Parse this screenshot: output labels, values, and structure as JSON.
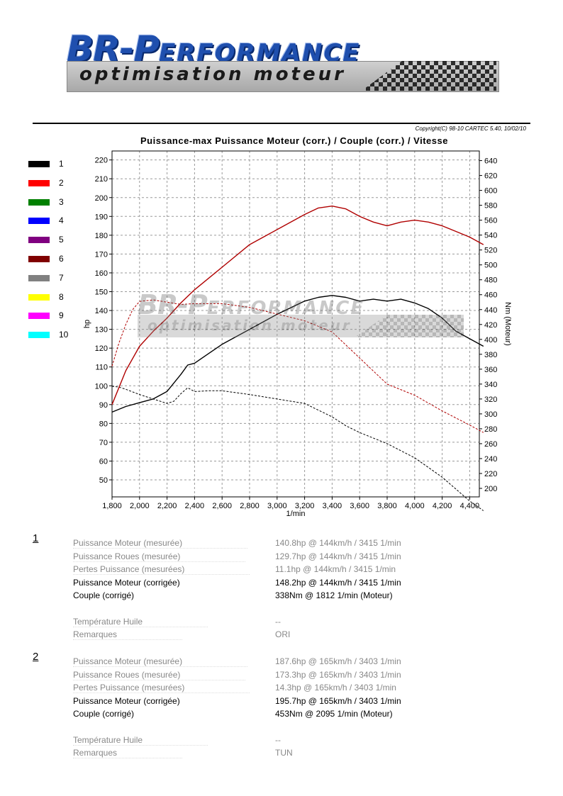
{
  "logo": {
    "brand_big": "BR-P",
    "brand_small": "ERFORMANCE",
    "tagline": "optimisation moteur"
  },
  "copyright": "Copyright(C) 98-10 CARTEC 5.40, 10/02/10",
  "legend": [
    {
      "label": "1",
      "color": "#000000"
    },
    {
      "label": "2",
      "color": "#ff0000"
    },
    {
      "label": "3",
      "color": "#008000"
    },
    {
      "label": "4",
      "color": "#0000ff"
    },
    {
      "label": "5",
      "color": "#800080"
    },
    {
      "label": "6",
      "color": "#800000"
    },
    {
      "label": "7",
      "color": "#808080"
    },
    {
      "label": "8",
      "color": "#ffff00"
    },
    {
      "label": "9",
      "color": "#ff00ff"
    },
    {
      "label": "10",
      "color": "#00ffff"
    }
  ],
  "chart_data": {
    "type": "line",
    "title": "Puissance-max Puissance Moteur (corr.) / Couple (corr.) / Vitesse",
    "xlabel": "1/min",
    "ylabel": "hp",
    "y2label": "Nm (Moteur)",
    "xlim": [
      1800,
      4500
    ],
    "ylim": [
      40,
      225
    ],
    "y2lim": [
      190,
      645
    ],
    "x_ticks": [
      1800,
      2000,
      2200,
      2400,
      2600,
      2800,
      3000,
      3200,
      3400,
      3600,
      3800,
      4000,
      4200,
      4400
    ],
    "x_tick_labels": [
      "1,800",
      "2,000",
      "2,200",
      "2,400",
      "2,600",
      "2,800",
      "3,000",
      "3,200",
      "3,400",
      "3,600",
      "3,800",
      "4,000",
      "4,200",
      "4,400"
    ],
    "y_ticks": [
      50,
      60,
      70,
      80,
      90,
      100,
      110,
      120,
      130,
      140,
      150,
      160,
      170,
      180,
      190,
      200,
      210,
      220
    ],
    "y2_ticks": [
      200,
      220,
      240,
      260,
      280,
      300,
      320,
      340,
      360,
      380,
      400,
      420,
      440,
      460,
      480,
      500,
      520,
      540,
      560,
      580,
      600,
      620,
      640
    ],
    "grid": true,
    "series": [
      {
        "run": "1",
        "quantity": "power",
        "axis": "left",
        "color": "#000000",
        "dash": false,
        "x": [
          1800,
          1900,
          2000,
          2100,
          2200,
          2300,
          2350,
          2400,
          2500,
          2600,
          2800,
          3000,
          3200,
          3300,
          3400,
          3500,
          3600,
          3700,
          3800,
          3900,
          4000,
          4100,
          4200,
          4300,
          4400,
          4500
        ],
        "y": [
          86,
          89,
          91,
          93,
          97,
          106,
          111,
          112,
          117,
          122,
          130,
          138,
          145,
          147,
          148,
          147,
          145,
          146,
          145,
          146,
          144,
          141,
          136,
          129,
          125,
          121
        ]
      },
      {
        "run": "1",
        "quantity": "torque",
        "axis": "right",
        "color": "#000000",
        "dash": true,
        "x": [
          1800,
          1850,
          1900,
          2000,
          2100,
          2200,
          2250,
          2300,
          2350,
          2400,
          2500,
          2600,
          2800,
          3000,
          3200,
          3300,
          3400,
          3500,
          3600,
          3800,
          4000,
          4200,
          4400,
          4500
        ],
        "y": [
          337,
          336,
          333,
          326,
          320,
          314,
          317,
          327,
          335,
          330,
          331,
          331,
          326,
          320,
          314,
          305,
          296,
          284,
          275,
          260,
          241,
          215,
          183,
          170
        ]
      },
      {
        "run": "2",
        "quantity": "power",
        "axis": "left",
        "color": "#b00000",
        "dash": false,
        "x": [
          1800,
          1900,
          2000,
          2100,
          2200,
          2300,
          2400,
          2600,
          2800,
          3000,
          3200,
          3300,
          3400,
          3500,
          3600,
          3700,
          3800,
          3900,
          4000,
          4100,
          4200,
          4300,
          4400,
          4500
        ],
        "y": [
          90,
          108,
          121,
          129,
          136,
          144,
          151,
          163,
          175,
          183,
          191,
          194.5,
          195.5,
          194,
          190,
          187,
          185,
          187,
          188,
          187,
          185,
          182,
          179,
          175
        ]
      },
      {
        "run": "2",
        "quantity": "torque",
        "axis": "right",
        "color": "#b00000",
        "dash": true,
        "x": [
          1800,
          1850,
          1900,
          1950,
          2000,
          2100,
          2200,
          2300,
          2400,
          2600,
          2800,
          3000,
          3200,
          3400,
          3600,
          3800,
          4000,
          4200,
          4400,
          4500
        ],
        "y": [
          364,
          395,
          420,
          440,
          451,
          453,
          450,
          447,
          448,
          448,
          443,
          434,
          425,
          410,
          375,
          340,
          325,
          304,
          285,
          275
        ]
      }
    ]
  },
  "results": [
    {
      "run": "1",
      "rows": [
        {
          "label": "Puissance Moteur (mesurée)",
          "value": "140.8hp @ 144km/h / 3415 1/min",
          "style": "grey"
        },
        {
          "label": "Puissance Roues (mesurée)",
          "value": "129.7hp @ 144km/h / 3415 1/min",
          "style": "grey"
        },
        {
          "label": "Pertes Puissance (mesurées)",
          "value": "11.1hp @ 144km/h / 3415 1/min",
          "style": "grey"
        },
        {
          "label": "Puissance Moteur (corrigée)",
          "value": "148.2hp @ 144km/h / 3415 1/min",
          "style": "black"
        },
        {
          "label": "Couple (corrigé)",
          "value": "338Nm @ 1812 1/min (Moteur)",
          "style": "black"
        },
        {
          "label": "Température Huile",
          "value": "--",
          "style": "grey"
        },
        {
          "label": "Remarques",
          "value": "ORI",
          "style": "grey"
        }
      ]
    },
    {
      "run": "2",
      "rows": [
        {
          "label": "Puissance Moteur (mesurée)",
          "value": "187.6hp @ 165km/h / 3403 1/min",
          "style": "grey"
        },
        {
          "label": "Puissance Roues (mesurée)",
          "value": "173.3hp @ 165km/h / 3403 1/min",
          "style": "grey"
        },
        {
          "label": "Pertes Puissance (mesurées)",
          "value": "14.3hp @ 165km/h / 3403 1/min",
          "style": "grey"
        },
        {
          "label": "Puissance Moteur (corrigée)",
          "value": "195.7hp @ 165km/h / 3403 1/min",
          "style": "black"
        },
        {
          "label": "Couple (corrigé)",
          "value": "453Nm @ 2095 1/min (Moteur)",
          "style": "black"
        },
        {
          "label": "Température Huile",
          "value": "--",
          "style": "grey"
        },
        {
          "label": "Remarques",
          "value": "TUN",
          "style": "grey"
        }
      ]
    }
  ]
}
